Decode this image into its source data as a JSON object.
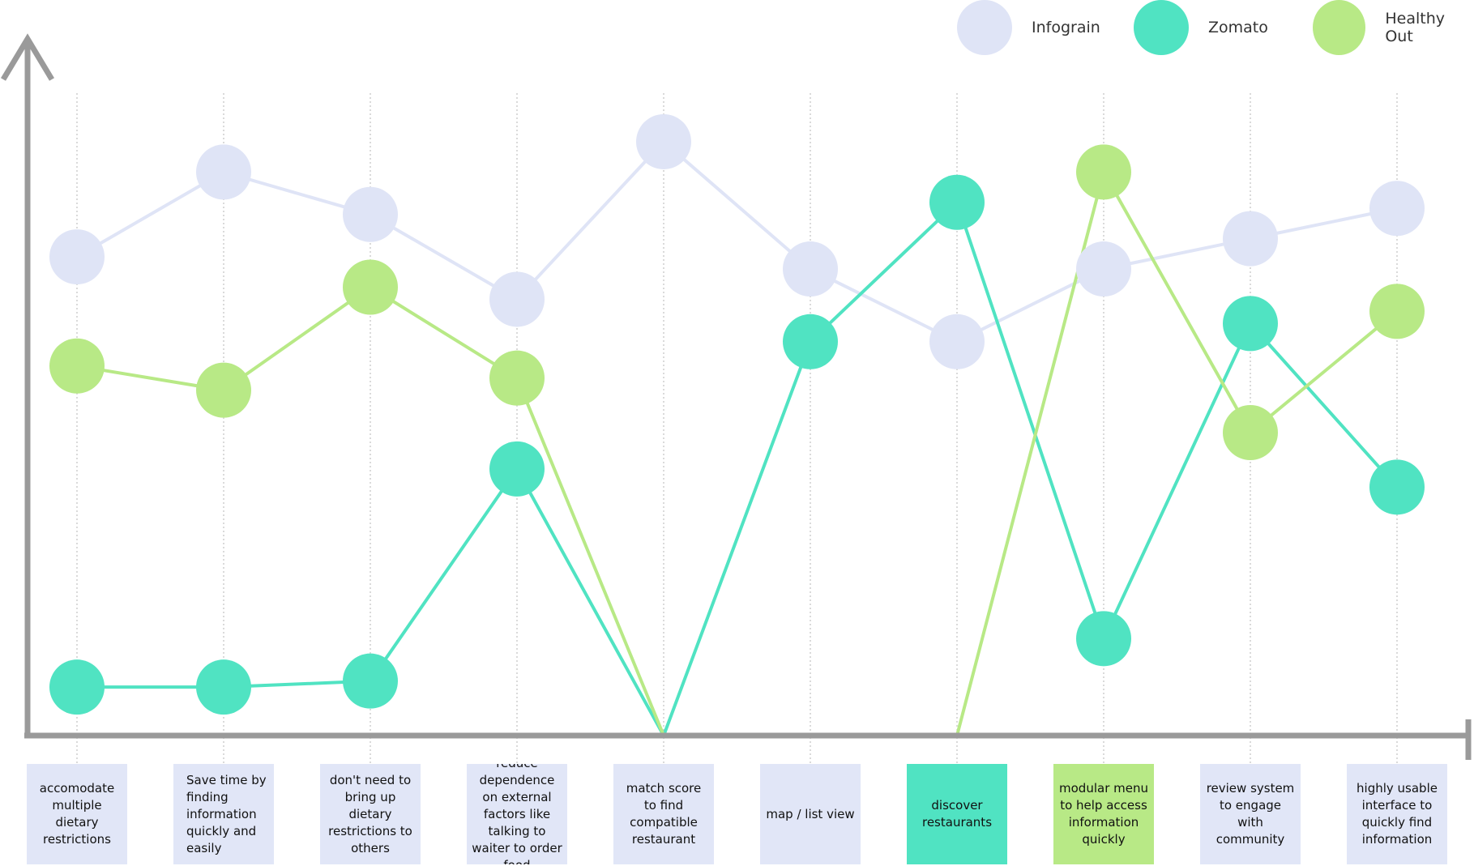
{
  "colors": {
    "axis": "#9a9a9a",
    "guide": "#b5b5b5",
    "box_default": "#e1e6f7"
  },
  "legend": [
    {
      "name": "Infograin",
      "color": "#dfe4f6"
    },
    {
      "name": "Zomato",
      "color": "#50e3c2"
    },
    {
      "name": "Healthy Out",
      "color": "#b8e986"
    }
  ],
  "chart_data": {
    "type": "line",
    "title": "",
    "xlabel": "",
    "ylabel": "",
    "ylim": [
      0,
      10
    ],
    "grid": "vertical dotted guides per category",
    "legend_position": "top-right",
    "categories": [
      "accomodate multiple dietary restrictions",
      "Save time by finding information quickly and easily",
      "don't need to bring up dietary restrictions to others",
      "reduce dependence on external factors like talking to waiter to order food",
      "match score to find compatible restaurant",
      "map / list view",
      "discover restaurants",
      "modular menu to help access information quickly",
      "review system to engage with community",
      "highly usable interface to quickly find information"
    ],
    "category_highlight": [
      null,
      null,
      null,
      null,
      null,
      null,
      "#50e3c2",
      "#b8e986",
      null,
      null
    ],
    "series": [
      {
        "name": "Infograin",
        "color": "#dfe4f6",
        "values": [
          7.9,
          9.3,
          8.6,
          7.2,
          9.8,
          7.7,
          6.5,
          7.7,
          8.2,
          8.7
        ]
      },
      {
        "name": "Zomato",
        "color": "#50e3c2",
        "values": [
          0.8,
          0.8,
          0.9,
          4.4,
          0.0,
          6.5,
          8.8,
          1.6,
          6.8,
          4.1
        ]
      },
      {
        "name": "Healthy Out",
        "color": "#b8e986",
        "values": [
          6.1,
          5.7,
          7.4,
          5.9,
          0.0,
          0.0,
          0.0,
          9.3,
          5.0,
          7.0
        ]
      }
    ]
  }
}
